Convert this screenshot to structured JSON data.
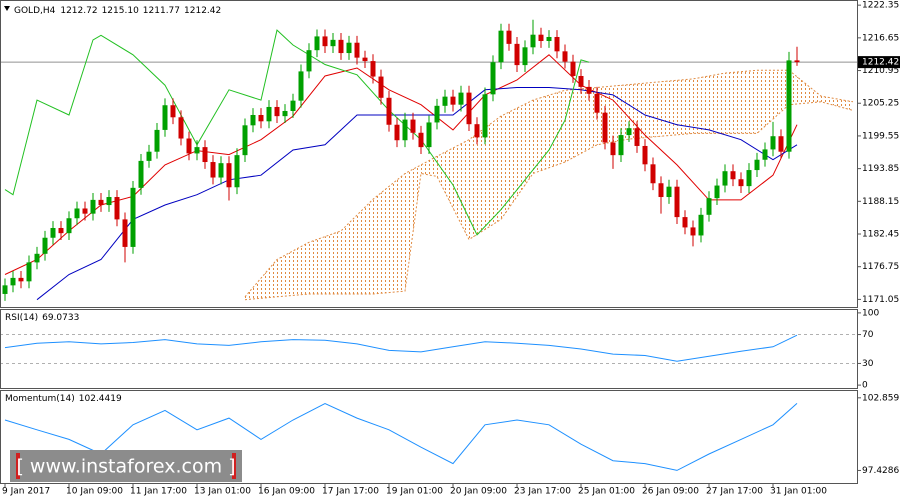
{
  "chart_data": [
    {
      "type": "candlestick",
      "title": "GOLD,H4",
      "header_values": [
        "1212.72",
        "1215.10",
        "1211.77",
        "1212.42"
      ],
      "colors": {
        "up": "#00a000",
        "down": "#d00000"
      },
      "xlim": [
        -0.625,
        106.5
      ],
      "ylim": [
        1169.9,
        1222.9
      ],
      "yticks": [
        1222.35,
        1216.65,
        1210.95,
        1205.25,
        1199.55,
        1193.85,
        1188.15,
        1182.45,
        1176.75,
        1171.05
      ],
      "last_price": 1212.42,
      "open": [
        1172.0,
        1173.5,
        1174.8,
        1174.2,
        1177.5,
        1179.0,
        1181.8,
        1183.5,
        1182.6,
        1185.2,
        1186.9,
        1186.0,
        1188.4,
        1187.5,
        1188.9,
        1185.0,
        1180.2,
        1190.5,
        1195.2,
        1196.8,
        1200.6,
        1204.9,
        1202.8,
        1199.1,
        1196.5,
        1197.6,
        1195.0,
        1192.3,
        1194.8,
        1190.6,
        1196.2,
        1201.4,
        1203.2,
        1202.1,
        1204.6,
        1203.0,
        1203.9,
        1205.7,
        1210.8,
        1214.5,
        1216.9,
        1215.2,
        1216.3,
        1214.0,
        1215.8,
        1213.2,
        1212.6,
        1209.9,
        1206.2,
        1201.5,
        1198.8,
        1202.4,
        1200.1,
        1197.6,
        1201.9,
        1204.8,
        1206.4,
        1205.0,
        1207.1,
        1201.6,
        1199.3,
        1206.8,
        1212.4,
        1217.9,
        1215.6,
        1211.9,
        1215.0,
        1217.2,
        1216.1,
        1216.8,
        1214.3,
        1212.5,
        1210.0,
        1208.1,
        1206.9,
        1203.6,
        1198.4,
        1196.2,
        1199.7,
        1200.9,
        1197.8,
        1194.6,
        1191.3,
        1188.9,
        1190.7,
        1185.4,
        1183.6,
        1182.2,
        1185.8,
        1188.7,
        1190.9,
        1193.4,
        1192.0,
        1190.8,
        1193.6,
        1195.4,
        1197.2,
        1199.5,
        1196.8,
        1212.72
      ],
      "high": [
        1174.7,
        1176.0,
        1176.0,
        1178.7,
        1180.2,
        1183.0,
        1184.7,
        1184.7,
        1186.4,
        1188.1,
        1188.1,
        1189.6,
        1189.6,
        1190.1,
        1190.1,
        1186.2,
        1191.7,
        1196.4,
        1198.0,
        1201.8,
        1206.1,
        1206.1,
        1204.0,
        1200.3,
        1198.8,
        1198.8,
        1196.2,
        1196.0,
        1196.0,
        1197.4,
        1202.6,
        1204.4,
        1204.4,
        1205.8,
        1205.8,
        1205.1,
        1206.9,
        1212.0,
        1215.7,
        1218.1,
        1218.1,
        1217.5,
        1217.5,
        1217.0,
        1217.0,
        1214.4,
        1213.8,
        1211.1,
        1207.4,
        1202.7,
        1203.6,
        1203.6,
        1201.3,
        1203.1,
        1206.0,
        1207.6,
        1207.6,
        1208.3,
        1208.3,
        1202.8,
        1208.0,
        1213.6,
        1219.1,
        1219.1,
        1216.8,
        1216.2,
        1219.8,
        1218.4,
        1218.0,
        1218.0,
        1215.5,
        1213.7,
        1211.2,
        1209.3,
        1208.1,
        1204.8,
        1199.6,
        1200.9,
        1202.1,
        1202.1,
        1199.0,
        1195.8,
        1192.5,
        1191.9,
        1191.9,
        1186.6,
        1184.8,
        1187.0,
        1189.9,
        1192.1,
        1194.6,
        1194.6,
        1193.2,
        1194.8,
        1196.6,
        1198.4,
        1202.0,
        1200.7,
        1214.2,
        1215.1
      ],
      "low": [
        1170.8,
        1172.3,
        1173.0,
        1173.0,
        1176.3,
        1177.8,
        1180.6,
        1181.4,
        1181.4,
        1184.0,
        1184.8,
        1184.8,
        1186.3,
        1186.3,
        1183.8,
        1177.5,
        1179.0,
        1189.3,
        1194.0,
        1195.6,
        1199.4,
        1201.6,
        1197.9,
        1195.3,
        1195.3,
        1193.8,
        1191.1,
        1191.1,
        1188.3,
        1189.4,
        1195.0,
        1200.2,
        1200.9,
        1200.9,
        1201.8,
        1201.8,
        1202.7,
        1204.5,
        1209.6,
        1213.3,
        1214.0,
        1214.0,
        1212.8,
        1212.8,
        1212.0,
        1211.4,
        1208.7,
        1205.0,
        1200.3,
        1197.6,
        1197.6,
        1198.9,
        1196.4,
        1196.4,
        1200.7,
        1203.6,
        1203.8,
        1203.8,
        1200.4,
        1198.1,
        1198.1,
        1205.6,
        1211.2,
        1214.4,
        1210.7,
        1210.7,
        1213.8,
        1214.9,
        1214.9,
        1213.1,
        1211.3,
        1208.8,
        1206.9,
        1205.7,
        1202.4,
        1197.2,
        1193.8,
        1195.0,
        1198.5,
        1196.6,
        1193.4,
        1190.1,
        1186.0,
        1187.7,
        1184.2,
        1182.4,
        1180.3,
        1181.0,
        1184.6,
        1187.5,
        1189.7,
        1190.8,
        1189.6,
        1189.6,
        1192.4,
        1194.2,
        1196.0,
        1195.6,
        1195.6,
        1211.77
      ],
      "close": [
        1173.5,
        1174.8,
        1174.2,
        1177.5,
        1179.0,
        1181.8,
        1183.5,
        1182.6,
        1185.2,
        1186.9,
        1186.0,
        1188.4,
        1187.5,
        1188.9,
        1185.0,
        1180.2,
        1190.5,
        1195.2,
        1196.8,
        1200.6,
        1204.9,
        1202.8,
        1199.1,
        1196.5,
        1197.6,
        1195.0,
        1192.3,
        1194.8,
        1190.6,
        1196.2,
        1201.4,
        1203.2,
        1202.1,
        1204.6,
        1203.0,
        1203.9,
        1205.7,
        1210.8,
        1214.5,
        1216.9,
        1215.2,
        1216.3,
        1214.0,
        1215.8,
        1213.2,
        1212.6,
        1209.9,
        1206.2,
        1201.5,
        1198.8,
        1202.4,
        1200.1,
        1197.6,
        1201.9,
        1204.8,
        1206.4,
        1205.0,
        1207.1,
        1201.6,
        1199.3,
        1206.8,
        1212.4,
        1217.9,
        1215.6,
        1211.9,
        1215.0,
        1217.2,
        1216.1,
        1216.8,
        1214.3,
        1212.5,
        1210.0,
        1208.1,
        1206.9,
        1203.6,
        1198.4,
        1196.2,
        1199.7,
        1200.9,
        1197.8,
        1194.6,
        1191.3,
        1188.9,
        1190.7,
        1185.4,
        1183.6,
        1182.2,
        1185.8,
        1188.7,
        1190.9,
        1193.4,
        1192.0,
        1190.8,
        1193.6,
        1195.4,
        1197.2,
        1199.5,
        1196.8,
        1212.72,
        1212.42
      ],
      "lines": [
        {
          "color": "#e00000",
          "x": [
            0,
            4,
            8,
            12,
            16,
            20,
            24,
            28,
            32,
            36,
            40,
            44,
            48,
            52,
            56,
            60,
            64,
            68,
            72,
            76,
            80,
            84,
            88,
            92,
            96,
            99
          ],
          "values": [
            1175.4,
            1178.0,
            1183.0,
            1187.5,
            1189.0,
            1194.5,
            1197.0,
            1196.3,
            1198.9,
            1203.0,
            1210.0,
            1211.4,
            1207.6,
            1205.0,
            1200.6,
            1206.7,
            1209.3,
            1213.7,
            1208.4,
            1205.8,
            1199.7,
            1194.5,
            1188.4,
            1188.4,
            1192.7,
            1201.5
          ]
        },
        {
          "color": "#0000c0",
          "x": [
            4,
            8,
            12,
            16,
            20,
            24,
            28,
            32,
            36,
            40,
            44,
            48,
            52,
            56,
            60,
            64,
            68,
            72,
            76,
            80,
            84,
            88,
            92,
            96,
            99
          ],
          "values": [
            1171.0,
            1175.4,
            1178.0,
            1185.0,
            1187.5,
            1189.3,
            1191.9,
            1192.7,
            1197.1,
            1198.0,
            1203.2,
            1203.2,
            1203.2,
            1203.2,
            1207.6,
            1208.0,
            1208.0,
            1207.6,
            1206.7,
            1203.2,
            1201.5,
            1200.6,
            1198.9,
            1195.4,
            1198.0
          ]
        },
        {
          "color": "#22c022",
          "x": [
            0,
            1,
            4,
            8,
            11,
            12,
            16,
            20,
            24,
            28,
            32,
            34,
            36,
            40,
            44,
            48,
            52,
            56,
            59,
            62,
            65,
            68,
            70,
            72,
            73
          ],
          "values": [
            1190.2,
            1189.3,
            1205.8,
            1203.2,
            1216.3,
            1217.1,
            1213.7,
            1208.4,
            1198.0,
            1207.6,
            1205.8,
            1218.0,
            1215.4,
            1212.0,
            1210.2,
            1204.0,
            1198.9,
            1191.0,
            1182.3,
            1186.7,
            1191.9,
            1197.1,
            1202.3,
            1212.8,
            1212.4
          ]
        }
      ],
      "cloud": {
        "color": "#e08a40",
        "x": [
          30,
          34,
          38,
          42,
          46,
          50,
          52,
          54,
          58,
          62,
          66,
          70,
          74,
          78,
          82,
          86,
          90,
          94,
          98,
          102,
          106
        ],
        "span_a": [
          1171.5,
          1178.0,
          1181.0,
          1183.0,
          1188.5,
          1193.0,
          1194.5,
          1196.0,
          1198.9,
          1203.0,
          1205.8,
          1207.5,
          1208.0,
          1208.5,
          1209.0,
          1209.5,
          1210.5,
          1211.0,
          1211.0,
          1206.5,
          1205.5
        ],
        "span_b": [
          1171.0,
          1171.5,
          1172.0,
          1172.0,
          1172.0,
          1172.5,
          1193.0,
          1192.5,
          1181.5,
          1185.0,
          1193.0,
          1195.0,
          1198.0,
          1199.0,
          1199.5,
          1200.0,
          1200.0,
          1200.0,
          1205.0,
          1205.5,
          1204.0
        ]
      }
    },
    {
      "type": "line",
      "title": "RSI(14)",
      "xlim": [
        -0.625,
        106.5
      ],
      "ylim": [
        -4,
        104
      ],
      "yticks": [
        100,
        70,
        30,
        0
      ],
      "x": [
        0,
        4,
        8,
        12,
        16,
        20,
        24,
        28,
        32,
        36,
        40,
        44,
        48,
        52,
        56,
        60,
        64,
        68,
        72,
        76,
        80,
        84,
        88,
        92,
        96,
        99
      ],
      "series": [
        {
          "color": "#1e90ff",
          "values": [
            52,
            58,
            60,
            57,
            59,
            63,
            57,
            55,
            60,
            63,
            62,
            57,
            48,
            46,
            53,
            60,
            58,
            55,
            50,
            43,
            41,
            33,
            40,
            47,
            53,
            69.0733
          ]
        }
      ]
    },
    {
      "type": "line",
      "title": "Momentum(14)",
      "xlim": [
        -0.625,
        106.5
      ],
      "ylim": [
        96.49,
        103.37
      ],
      "yticks": [
        102.8597,
        97.4286
      ],
      "x": [
        0,
        4,
        8,
        12,
        16,
        20,
        24,
        28,
        32,
        36,
        40,
        44,
        48,
        52,
        56,
        60,
        64,
        68,
        72,
        76,
        80,
        84,
        88,
        92,
        96,
        99
      ],
      "series": [
        {
          "color": "#1e90ff",
          "values": [
            101.2,
            100.47,
            99.75,
            98.66,
            100.84,
            101.92,
            100.47,
            101.34,
            99.75,
            101.2,
            102.43,
            101.34,
            100.47,
            99.17,
            97.94,
            100.84,
            101.2,
            100.84,
            99.39,
            98.16,
            97.94,
            97.43,
            98.66,
            99.75,
            100.84,
            102.4419
          ]
        }
      ],
      "xticks": [
        {
          "value": 0,
          "label": "9 Jan 2017"
        },
        {
          "value": 8,
          "label": "10 Jan 09:00"
        },
        {
          "value": 16,
          "label": "11 Jan 17:00"
        },
        {
          "value": 24,
          "label": "13 Jan 01:00"
        },
        {
          "value": 32,
          "label": "16 Jan 09:00"
        },
        {
          "value": 40,
          "label": "17 Jan 17:00"
        },
        {
          "value": 48,
          "label": "19 Jan 01:00"
        },
        {
          "value": 56,
          "label": "20 Jan 09:00"
        },
        {
          "value": 64,
          "label": "23 Jan 17:00"
        },
        {
          "value": 72,
          "label": "25 Jan 01:00"
        },
        {
          "value": 80,
          "label": "26 Jan 09:00"
        },
        {
          "value": 88,
          "label": "27 Jan 17:00"
        },
        {
          "value": 96,
          "label": "31 Jan 01:00"
        }
      ]
    }
  ],
  "watermark": "[ www.instaforex.com ]"
}
